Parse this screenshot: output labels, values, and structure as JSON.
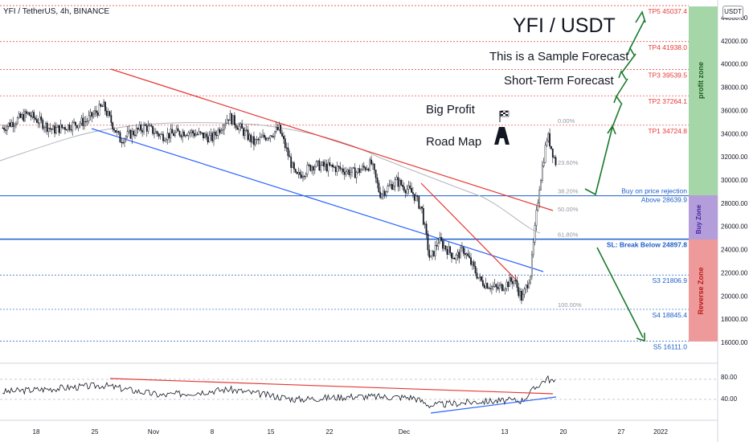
{
  "header": {
    "title": "YFI / TetherUS, 4h, BINANCE",
    "currency": "USDT"
  },
  "annotations": {
    "main_title": "YFI / USDT",
    "sample": "This is a Sample Forecast",
    "short_term": "Short-Term Forecast",
    "big_profit": "Big Profit",
    "road_map": "Road Map"
  },
  "levels": [
    {
      "label": "TP5 45037.4",
      "value": 45037.4,
      "color": "#e53935"
    },
    {
      "label": "TP4 41938.0",
      "value": 41938.0,
      "color": "#e53935"
    },
    {
      "label": "TP3 39539.5",
      "value": 39539.5,
      "color": "#e53935"
    },
    {
      "label": "TP2 37264.1",
      "value": 37264.1,
      "color": "#e53935"
    },
    {
      "label": "TP1 34724.8",
      "value": 34724.8,
      "color": "#e53935"
    },
    {
      "label": "Buy on price rejection",
      "value": 28639.9,
      "color": "#1e5fc8"
    },
    {
      "label": "Above 28639.9",
      "value": 28639.9,
      "color": "#1e5fc8"
    },
    {
      "label": "SL: Break Below 24897.8",
      "value": 24897.8,
      "color": "#1e5fc8"
    },
    {
      "label": "S3 21806.9",
      "value": 21806.9,
      "color": "#1e5fc8"
    },
    {
      "label": "S4 18845.4",
      "value": 18845.4,
      "color": "#1e5fc8"
    },
    {
      "label": "S5 16111.0",
      "value": 16111.0,
      "color": "#1e5fc8"
    }
  ],
  "fib": [
    {
      "label": "0.00%",
      "value": 34724.8
    },
    {
      "label": "23.60%",
      "value": 31100
    },
    {
      "label": "38.20%",
      "value": 28639.9
    },
    {
      "label": "50.00%",
      "value": 27100
    },
    {
      "label": "61.80%",
      "value": 24897.8
    },
    {
      "label": "100.00%",
      "value": 18845.4
    }
  ],
  "zones": {
    "profit": {
      "label": "profit zone",
      "color": "#a5d6a7"
    },
    "buy": {
      "label": "Buy Zone",
      "color": "#b39ddb"
    },
    "reverse": {
      "label": "Reverse Zone",
      "color": "#ef9a9a"
    }
  },
  "rsi_axis": [
    "80.00",
    "40.00"
  ],
  "chart_data": {
    "type": "line",
    "ylim": [
      15000,
      46000
    ],
    "y_ticks": [
      "44000.00",
      "42000.00",
      "40000.00",
      "38000.00",
      "36000.00",
      "34000.00",
      "32000.00",
      "30000.00",
      "28000.00",
      "26000.00",
      "24000.00",
      "22000.00",
      "20000.00",
      "18000.00",
      "16000.00"
    ],
    "x_tick_labels": [
      "18",
      "25",
      "Nov",
      "8",
      "15",
      "22",
      "Dec",
      "13",
      "20",
      "27",
      "2022"
    ],
    "price_path": [
      {
        "x": "Oct 14",
        "y": 34500
      },
      {
        "x": "Oct 17",
        "y": 35700
      },
      {
        "x": "Oct 20",
        "y": 34300
      },
      {
        "x": "Oct 24",
        "y": 35100
      },
      {
        "x": "Oct 26",
        "y": 36400
      },
      {
        "x": "Oct 28",
        "y": 33500
      },
      {
        "x": "Oct 31",
        "y": 34600
      },
      {
        "x": "Nov 2",
        "y": 33800
      },
      {
        "x": "Nov 5",
        "y": 34200
      },
      {
        "x": "Nov 8",
        "y": 33600
      },
      {
        "x": "Nov 10",
        "y": 35500
      },
      {
        "x": "Nov 13",
        "y": 33200
      },
      {
        "x": "Nov 16",
        "y": 34400
      },
      {
        "x": "Nov 18",
        "y": 30200
      },
      {
        "x": "Nov 20",
        "y": 31300
      },
      {
        "x": "Nov 23",
        "y": 31000
      },
      {
        "x": "Nov 25",
        "y": 30600
      },
      {
        "x": "Nov 27",
        "y": 31400
      },
      {
        "x": "Nov 28",
        "y": 28800
      },
      {
        "x": "Nov 30",
        "y": 29900
      },
      {
        "x": "Dec 2",
        "y": 28800
      },
      {
        "x": "Dec 3",
        "y": 27500
      },
      {
        "x": "Dec 4",
        "y": 23000
      },
      {
        "x": "Dec 5",
        "y": 24800
      },
      {
        "x": "Dec 7",
        "y": 23300
      },
      {
        "x": "Dec 8",
        "y": 24000
      },
      {
        "x": "Dec 10",
        "y": 21300
      },
      {
        "x": "Dec 12",
        "y": 20600
      },
      {
        "x": "Dec 14",
        "y": 21400
      },
      {
        "x": "Dec 15",
        "y": 19700
      },
      {
        "x": "Dec 16",
        "y": 22000
      },
      {
        "x": "Dec 17",
        "y": 29300
      },
      {
        "x": "Dec 18",
        "y": 33900
      },
      {
        "x": "Dec 19",
        "y": 31500
      }
    ],
    "rsi_path": [
      {
        "x": "Oct 14",
        "y": 55
      },
      {
        "x": "Oct 26",
        "y": 68
      },
      {
        "x": "Nov 2",
        "y": 48
      },
      {
        "x": "Nov 10",
        "y": 60
      },
      {
        "x": "Nov 18",
        "y": 40
      },
      {
        "x": "Nov 25",
        "y": 46
      },
      {
        "x": "Dec 2",
        "y": 44
      },
      {
        "x": "Dec 4",
        "y": 28
      },
      {
        "x": "Dec 10",
        "y": 36
      },
      {
        "x": "Dec 15",
        "y": 38
      },
      {
        "x": "Dec 17",
        "y": 70
      },
      {
        "x": "Dec 18",
        "y": 82
      },
      {
        "x": "Dec 19",
        "y": 72
      }
    ]
  }
}
